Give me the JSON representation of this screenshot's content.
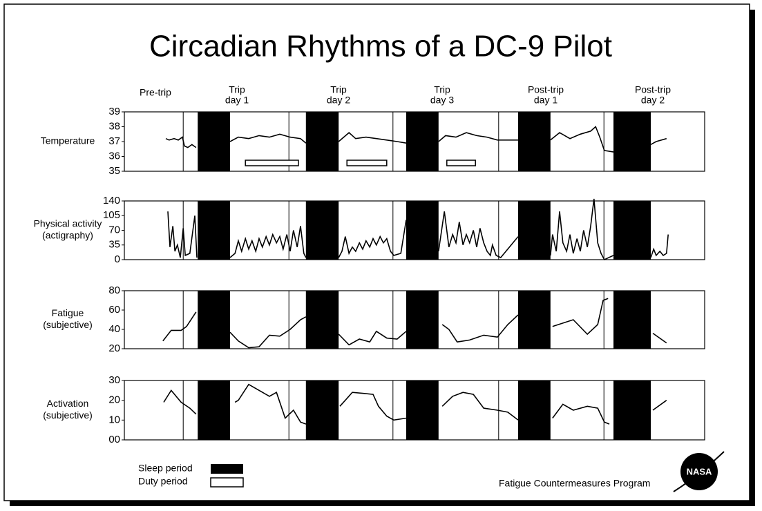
{
  "title": "Circadian Rhythms of a DC-9 Pilot",
  "day_labels": [
    [
      "Pre-trip"
    ],
    [
      "Trip",
      "day 1"
    ],
    [
      "Trip",
      "day 2"
    ],
    [
      "Trip",
      "day 3"
    ],
    [
      "Post-trip",
      "day 1"
    ],
    [
      "Post-trip",
      "day 2"
    ]
  ],
  "day_boundaries": [
    14.2,
    39.7,
    64.8,
    90.3,
    115.7
  ],
  "sleep_periods": [
    [
      17.7,
      25.5
    ],
    [
      43.8,
      51.7
    ],
    [
      68,
      75.8
    ],
    [
      95,
      102.8
    ],
    [
      118,
      127
    ]
  ],
  "legend": {
    "sleep": "Sleep period",
    "duty": "Duty period"
  },
  "footer": "Fatigue Countermeasures Program",
  "logo": "NASA",
  "chart_data": [
    {
      "type": "line",
      "ylabel": [
        "Temperature"
      ],
      "color": "#000000",
      "xlim": [
        0,
        140
      ],
      "ylim": [
        35,
        39
      ],
      "yticks": [
        35,
        36,
        37,
        38,
        39
      ],
      "duty_periods": [
        [
          29.2,
          42
        ],
        [
          53.7,
          63.3
        ],
        [
          77.8,
          84.7
        ]
      ],
      "x": [
        10,
        10.8,
        12,
        13,
        14,
        14.5,
        15.3,
        16.3,
        17.3,
        21.6,
        25.5,
        27.5,
        30,
        32.5,
        35,
        37.5,
        40,
        42.5,
        43.8,
        47.8,
        51.7,
        54.2,
        55.8,
        58.3,
        60.8,
        63.3,
        65.8,
        68,
        71.9,
        75.8,
        77.5,
        80,
        82.5,
        85,
        87.5,
        90,
        92.5,
        95,
        98.9,
        102.8,
        105,
        107.5,
        110,
        112.5,
        113.7,
        114.7,
        115.8,
        118,
        122.5,
        127,
        128.3,
        130.8
      ],
      "values": [
        37.2,
        37.1,
        37.2,
        37.1,
        37.3,
        36.7,
        36.6,
        36.8,
        36.6,
        null,
        37.0,
        37.3,
        37.2,
        37.4,
        37.3,
        37.5,
        37.3,
        37.2,
        36.9,
        null,
        37.0,
        37.6,
        37.2,
        37.3,
        37.2,
        37.1,
        37.0,
        36.9,
        null,
        37.0,
        37.4,
        37.3,
        37.6,
        37.4,
        37.3,
        37.1,
        37.1,
        37.1,
        null,
        37.1,
        37.6,
        37.2,
        37.5,
        37.7,
        38.0,
        37.3,
        36.4,
        36.3,
        null,
        36.8,
        37.0,
        37.2
      ]
    },
    {
      "type": "line",
      "ylabel": [
        "Physical activity",
        "(actigraphy)"
      ],
      "color": "#000000",
      "xlim": [
        0,
        140
      ],
      "ylim": [
        0,
        140
      ],
      "yticks": [
        0,
        35,
        70,
        105,
        140
      ],
      "x": [
        10.5,
        11,
        11.7,
        12.2,
        12.8,
        13.5,
        14.2,
        14.7,
        15.8,
        17,
        17.5,
        21.6,
        25.5,
        26.7,
        27.5,
        28.3,
        29.2,
        30,
        30.8,
        31.7,
        32.5,
        33.3,
        34.2,
        35,
        35.8,
        36.7,
        37.5,
        38.3,
        39.2,
        40,
        40.8,
        41.7,
        42.5,
        43.3,
        43.8,
        47.8,
        51.7,
        52.5,
        53.3,
        54.2,
        55,
        55.8,
        56.7,
        57.5,
        58.3,
        59.2,
        60,
        60.8,
        61.7,
        62.5,
        63.3,
        64.2,
        65,
        66.7,
        68,
        71.9,
        75.8,
        77.2,
        78.3,
        79.2,
        80,
        80.8,
        81.7,
        82.5,
        83.3,
        84.2,
        85,
        85.8,
        86.7,
        87.5,
        88.3,
        88.8,
        89.7,
        90.8,
        95,
        98.9,
        102.8,
        103.3,
        104.2,
        105,
        105.8,
        106.7,
        107.5,
        108.3,
        109.2,
        110,
        110.8,
        111.7,
        112.5,
        113.3,
        114.2,
        115,
        115.8,
        118,
        122.5,
        127,
        127.7,
        128.3,
        129.2,
        130,
        130.8,
        131.2
      ],
      "values": [
        115,
        30,
        80,
        20,
        35,
        5,
        75,
        10,
        15,
        105,
        5,
        null,
        5,
        15,
        45,
        20,
        50,
        25,
        45,
        20,
        50,
        30,
        55,
        35,
        60,
        40,
        55,
        25,
        60,
        20,
        70,
        30,
        80,
        15,
        5,
        null,
        5,
        20,
        55,
        15,
        30,
        20,
        40,
        25,
        45,
        30,
        50,
        35,
        55,
        40,
        50,
        20,
        10,
        15,
        95,
        null,
        20,
        115,
        30,
        60,
        40,
        90,
        35,
        60,
        40,
        70,
        30,
        75,
        40,
        20,
        10,
        35,
        10,
        5,
        55,
        null,
        10,
        60,
        20,
        115,
        40,
        20,
        60,
        15,
        50,
        20,
        70,
        30,
        80,
        145,
        40,
        15,
        0,
        10,
        null,
        5,
        25,
        10,
        20,
        10,
        15,
        60
      ]
    },
    {
      "type": "line",
      "ylabel": [
        "Fatigue",
        "(subjective)"
      ],
      "color": "#000000",
      "xlim": [
        0,
        140
      ],
      "ylim": [
        20,
        80
      ],
      "yticks": [
        20,
        40,
        60,
        80
      ],
      "x": [
        9.3,
        11.3,
        13.7,
        15,
        17.3,
        21.6,
        25.5,
        27.5,
        30,
        32.5,
        35,
        37.5,
        40,
        42.5,
        43.8,
        47.8,
        51.7,
        54.2,
        56.7,
        59.2,
        60.8,
        63.3,
        65.8,
        68,
        71.9,
        76.7,
        78.3,
        80.3,
        83.3,
        86.7,
        90,
        92.5,
        95,
        98.9,
        103.3,
        108.3,
        111.7,
        114.2,
        115.5,
        116.7,
        122.5,
        127.5,
        130.8
      ],
      "values": [
        28,
        39,
        39,
        43,
        58,
        null,
        37,
        28,
        21,
        22,
        34,
        33,
        40,
        50,
        53,
        null,
        35,
        24,
        30,
        27,
        38,
        31,
        30,
        38,
        null,
        45,
        40,
        27,
        29,
        34,
        32,
        45,
        55,
        null,
        43,
        50,
        35,
        45,
        70,
        72,
        null,
        36,
        26
      ]
    },
    {
      "type": "line",
      "ylabel": [
        "Activation",
        "(subjective)"
      ],
      "color": "#000000",
      "xlim": [
        0,
        140
      ],
      "ylim": [
        0,
        30
      ],
      "yticks": [
        {
          "value": 0,
          "label": "00"
        },
        10,
        20,
        30
      ],
      "x": [
        9.5,
        11.3,
        13.7,
        15.8,
        17.3,
        21.6,
        26.7,
        27.5,
        30,
        32.5,
        35,
        36.7,
        38.8,
        40.8,
        42.5,
        43.8,
        47.8,
        52,
        53.3,
        55,
        57.5,
        60,
        61.3,
        63.3,
        65,
        68,
        71.9,
        76.7,
        79.2,
        81.7,
        84.2,
        86.7,
        90,
        92.5,
        95,
        98.9,
        103.3,
        105.8,
        108.3,
        111.7,
        114.2,
        115.8,
        117,
        122.5,
        127.5,
        130.8
      ],
      "values": [
        19,
        25,
        19,
        16,
        13,
        null,
        19,
        20,
        28,
        25,
        22,
        24,
        11,
        15,
        9,
        8,
        null,
        17,
        20,
        24,
        23.5,
        23,
        17,
        12,
        10,
        11,
        null,
        17,
        22,
        24,
        23,
        16,
        15,
        14,
        10,
        null,
        11,
        18,
        15,
        17,
        16,
        9,
        8,
        null,
        15,
        20
      ]
    }
  ]
}
